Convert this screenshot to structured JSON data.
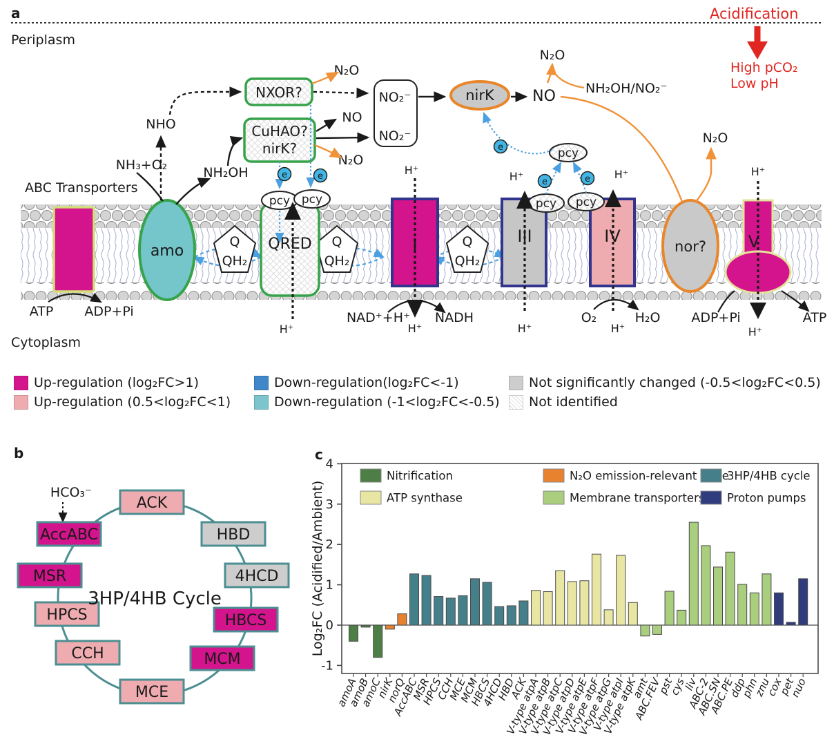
{
  "panel_a": {
    "label": "a",
    "periplasm": "Periplasm",
    "cytoplasm": "Cytoplasm",
    "abc_transporters": "ABC Transporters",
    "acidification": "Acidification",
    "high_pco2": "High pCO₂",
    "low_ph": "Low pH",
    "mol": {
      "n2o": "N₂O",
      "no": "NO",
      "no2": "NO₂⁻",
      "nho": "NHO",
      "nh3_o2": "NH₃+O₂",
      "nh2oh": "NH₂OH",
      "nh2oh_no2": "NH₂OH/NO₂⁻",
      "atp": "ATP",
      "adp_pi": "ADP+Pi",
      "nad_h": "NAD⁺+H⁺",
      "nadh": "NADH",
      "o2": "O₂",
      "h2o": "H₂O",
      "h": "H⁺",
      "e": "e"
    },
    "proteins": {
      "nxor": "NXOR?",
      "cuhao": "CuHAO?",
      "nirk_q": "nirK?",
      "nirk": "nirK",
      "nor": "nor?",
      "amo": "amo",
      "qred": "QRED",
      "q": "Q",
      "qh2": "QH₂",
      "pcy": "pcy",
      "c1": "I",
      "c3": "III",
      "c4": "IV",
      "c5": "V"
    },
    "legend": [
      {
        "label": "Up-regulation (log₂FC>1)",
        "color": "#d4148c",
        "style": "solid"
      },
      {
        "label": "Up-regulation (0.5<log₂FC<1)",
        "color": "#efacb0",
        "style": "solid"
      },
      {
        "label": "Down-regulation(log₂FC<-1)",
        "color": "#3f87c9",
        "style": "solid"
      },
      {
        "label": "Down-regulation (-1<log₂FC<-0.5)",
        "color": "#7cc5cd",
        "style": "solid"
      },
      {
        "label": "Not significantly changed (-0.5<log₂FC<0.5)",
        "color": "#cdcdcd",
        "style": "solid"
      },
      {
        "label": "Not identified",
        "color": "#ffffff",
        "style": "hatched"
      }
    ]
  },
  "panel_b": {
    "label": "b",
    "title": "3HP/4HB Cycle",
    "hco3": "HCO₃⁻",
    "level_colors": {
      "up-strong": "#d4148c",
      "up": "#efacb0",
      "ns": "#cdcdcd"
    },
    "enzymes": [
      {
        "name": "ACK",
        "level": "up"
      },
      {
        "name": "HBD",
        "level": "ns"
      },
      {
        "name": "4HCD",
        "level": "ns"
      },
      {
        "name": "HBCS",
        "level": "up-strong"
      },
      {
        "name": "MCM",
        "level": "up-strong"
      },
      {
        "name": "MCE",
        "level": "up"
      },
      {
        "name": "CCH",
        "level": "up"
      },
      {
        "name": "HPCS",
        "level": "up"
      },
      {
        "name": "MSR",
        "level": "up-strong"
      },
      {
        "name": "AccABC",
        "level": "up-strong"
      }
    ]
  },
  "panel_c": {
    "label": "c"
  },
  "chart_data": {
    "type": "bar",
    "title": "",
    "xlabel": "",
    "ylabel": "Log₂FC (Acidified/Ambient)",
    "ylim": [
      -1.2,
      4
    ],
    "yticks": [
      4,
      3,
      2,
      1,
      0,
      -1
    ],
    "grid": false,
    "legend_position": "top-inside",
    "groups": [
      {
        "name": "Nitrification",
        "color": "#4d7e45"
      },
      {
        "name": "N₂O emission-relevant gene",
        "color": "#e8822f"
      },
      {
        "name": "3HP/4HB cycle",
        "color": "#45808a"
      },
      {
        "name": "ATP synthase",
        "color": "#e9e6a3"
      },
      {
        "name": "Membrane transporters",
        "color": "#a8ce7e"
      },
      {
        "name": "Proton pumps",
        "color": "#2f3c7e"
      }
    ],
    "bars": [
      {
        "label": "amoA",
        "value": -0.4,
        "group": 0
      },
      {
        "label": "amoB",
        "value": -0.05,
        "group": 0
      },
      {
        "label": "amoC",
        "value": -0.8,
        "group": 0
      },
      {
        "label": "nirK",
        "value": -0.1,
        "group": 1
      },
      {
        "label": "norQ",
        "value": 0.28,
        "group": 1
      },
      {
        "label": "AccABC",
        "value": 1.27,
        "group": 2
      },
      {
        "label": "MSR",
        "value": 1.23,
        "group": 2
      },
      {
        "label": "HPCS",
        "value": 0.71,
        "group": 2
      },
      {
        "label": "CCH",
        "value": 0.67,
        "group": 2
      },
      {
        "label": "MCE",
        "value": 0.73,
        "group": 2
      },
      {
        "label": "MCM",
        "value": 1.15,
        "group": 2
      },
      {
        "label": "HBCS",
        "value": 1.06,
        "group": 2
      },
      {
        "label": "4HCD",
        "value": 0.46,
        "group": 2
      },
      {
        "label": "HBD",
        "value": 0.48,
        "group": 2
      },
      {
        "label": "ACK",
        "value": 0.6,
        "group": 2
      },
      {
        "label": "V-type atpA",
        "value": 0.86,
        "group": 3
      },
      {
        "label": "V-type atpB",
        "value": 0.83,
        "group": 3
      },
      {
        "label": "V-type atpC",
        "value": 1.35,
        "group": 3
      },
      {
        "label": "V-type atpD",
        "value": 1.08,
        "group": 3
      },
      {
        "label": "V-type atpE",
        "value": 1.1,
        "group": 3
      },
      {
        "label": "V-type atpF",
        "value": 1.76,
        "group": 3
      },
      {
        "label": "V-type atpG",
        "value": 0.38,
        "group": 3
      },
      {
        "label": "V-type atpI",
        "value": 1.73,
        "group": 3
      },
      {
        "label": "V-type atpK",
        "value": 0.56,
        "group": 3
      },
      {
        "label": "amt",
        "value": -0.27,
        "group": 4
      },
      {
        "label": "ABC.FEV",
        "value": -0.23,
        "group": 4
      },
      {
        "label": "pst",
        "value": 0.84,
        "group": 4
      },
      {
        "label": "cys",
        "value": 0.37,
        "group": 4
      },
      {
        "label": "liv",
        "value": 2.55,
        "group": 4
      },
      {
        "label": "ABC-2",
        "value": 1.97,
        "group": 4
      },
      {
        "label": "ABC.SN",
        "value": 1.44,
        "group": 4
      },
      {
        "label": "ABC.PE",
        "value": 1.81,
        "group": 4
      },
      {
        "label": "ddp",
        "value": 1.01,
        "group": 4
      },
      {
        "label": "phn",
        "value": 0.8,
        "group": 4
      },
      {
        "label": "znu",
        "value": 1.27,
        "group": 4
      },
      {
        "label": "cox",
        "value": 0.8,
        "group": 5
      },
      {
        "label": "pet",
        "value": 0.07,
        "group": 5
      },
      {
        "label": "nuo",
        "value": 1.15,
        "group": 5
      }
    ]
  }
}
